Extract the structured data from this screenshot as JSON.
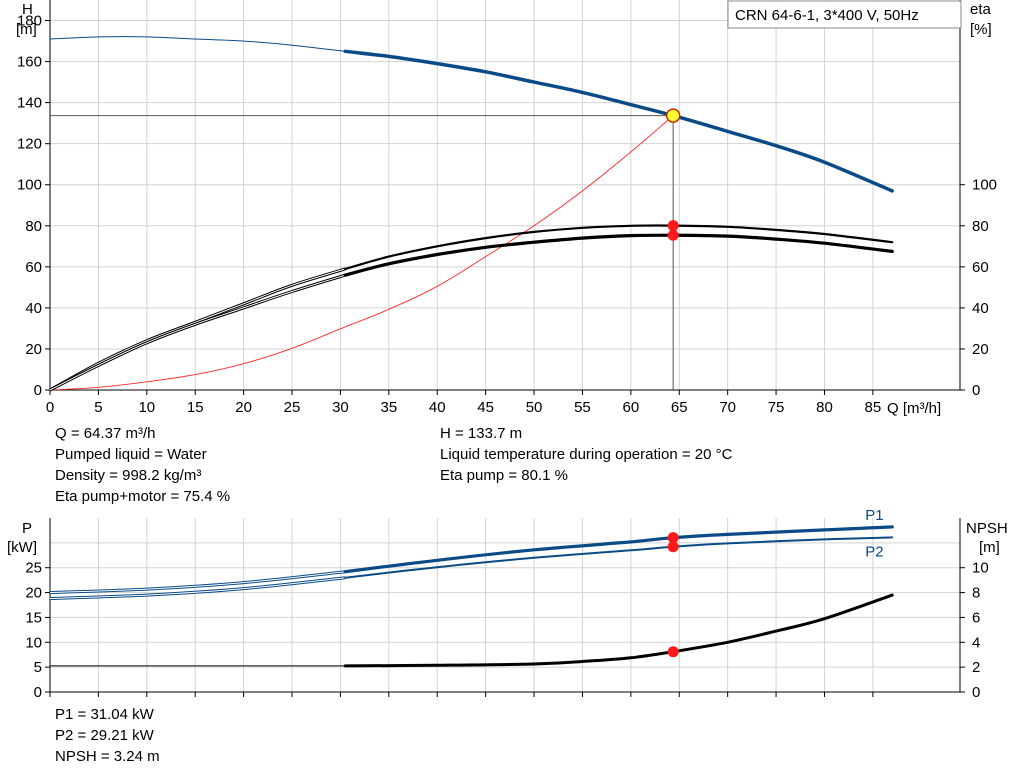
{
  "title_box": "CRN 64-6-1, 3*400 V, 50Hz",
  "colors": {
    "head": "#0a4a86",
    "power": "#0a4a86",
    "eff": "#000000",
    "npsh": "#000000",
    "system": "#ff2a2a",
    "marker": "#ff1a1a",
    "duty_fill": "#ffff33",
    "duty_stroke": "#cc2a00"
  },
  "axes": {
    "h_label": "H",
    "h_unit": "[m]",
    "eta_label": "eta",
    "eta_unit": "[%]",
    "q_label": "Q [m³/h]",
    "p_label": "P",
    "p_unit": "[kW]",
    "npsh_label": "NPSH",
    "npsh_unit": "[m]"
  },
  "info_top_left": [
    "Q = 64.37 m³/h",
    "Pumped liquid = Water",
    "Density = 998.2 kg/m³",
    "Eta pump+motor = 75.4 %"
  ],
  "info_top_right": [
    "H = 133.7 m",
    "Liquid temperature during operation = 20 °C",
    "Eta pump = 80.1 %"
  ],
  "info_bottom": [
    "P1 = 31.04 kW",
    "P2 = 29.21 kW",
    "NPSH = 3.24 m"
  ],
  "chart_data": [
    {
      "type": "line",
      "xlabel": "Q [m³/h]",
      "ylabel": "H [m]",
      "y2label": "eta [%]",
      "xlim": [
        0,
        94
      ],
      "ylim": [
        0,
        190
      ],
      "y2lim": [
        0,
        190
      ],
      "xticks": [
        0,
        5,
        10,
        15,
        20,
        25,
        30,
        35,
        40,
        45,
        50,
        55,
        60,
        65,
        70,
        75,
        80,
        85
      ],
      "yticks": [
        0,
        20,
        40,
        60,
        80,
        100,
        120,
        140,
        160,
        180
      ],
      "y2ticks": [
        0,
        20,
        40,
        60,
        80,
        100
      ],
      "grid": true,
      "operating_range_start": 30.5,
      "duty_point": {
        "q": 64.37,
        "h": 133.7,
        "eta_pump": 80.1,
        "eta_total": 75.4
      },
      "series": [
        {
          "key": "head",
          "axis": "left",
          "x": [
            0,
            5,
            10,
            15,
            20,
            25,
            30.5,
            35,
            40,
            45,
            50,
            55,
            60,
            64.37,
            70,
            75,
            80,
            87
          ],
          "y": [
            171,
            172,
            172,
            171,
            170,
            168,
            165,
            162.5,
            159,
            155,
            150,
            145,
            139,
            133.7,
            126,
            119,
            111,
            97
          ]
        },
        {
          "key": "eta_pump",
          "axis": "right",
          "x": [
            0,
            5,
            10,
            15,
            20,
            25,
            30.5,
            35,
            40,
            45,
            50,
            55,
            60,
            64.37,
            70,
            75,
            80,
            87
          ],
          "y": [
            0,
            13,
            24,
            33,
            42,
            51,
            59,
            65,
            70,
            74,
            77,
            79,
            80,
            80.1,
            79.5,
            78,
            76,
            72
          ]
        },
        {
          "key": "eta_total",
          "axis": "right",
          "x": [
            0,
            5,
            10,
            15,
            20,
            25,
            30.5,
            35,
            40,
            45,
            50,
            55,
            60,
            64.37,
            70,
            75,
            80,
            87
          ],
          "y": [
            0,
            12,
            23,
            32,
            40,
            48,
            56,
            61.5,
            66,
            69.5,
            72,
            74,
            75.2,
            75.4,
            75,
            73.5,
            71.5,
            67.5
          ]
        },
        {
          "key": "system",
          "axis": "left",
          "x": [
            0,
            5,
            10,
            15,
            20,
            25,
            30,
            35,
            40,
            45,
            50,
            55,
            60,
            64.37
          ],
          "y": [
            0,
            1.3,
            4,
            7.5,
            12.8,
            20.3,
            29.8,
            39.3,
            50.5,
            65,
            80,
            97,
            116,
            133.7
          ]
        }
      ]
    },
    {
      "type": "line",
      "xlabel": "Q [m³/h]",
      "ylabel": "P [kW]",
      "y2label": "NPSH [m]",
      "xlim": [
        0,
        94
      ],
      "ylim": [
        0,
        35
      ],
      "y2lim": [
        0,
        14
      ],
      "xticks": [
        0,
        5,
        10,
        15,
        20,
        25,
        30,
        35,
        40,
        45,
        50,
        55,
        60,
        65,
        70,
        75,
        80,
        85
      ],
      "yticks": [
        0,
        5,
        10,
        15,
        20,
        25
      ],
      "y2ticks": [
        0,
        2,
        4,
        6,
        8,
        10
      ],
      "grid": true,
      "operating_range_start": 30.5,
      "series": [
        {
          "key": "p1",
          "name": "P1",
          "axis": "left",
          "x": [
            0,
            10,
            20,
            30.5,
            40,
            50,
            60,
            64.37,
            70,
            80,
            87
          ],
          "y": [
            20,
            20.7,
            22,
            24.2,
            26.5,
            28.6,
            30.2,
            31.04,
            31.7,
            32.6,
            33.2
          ]
        },
        {
          "key": "p2",
          "name": "P2",
          "axis": "left",
          "x": [
            0,
            10,
            20,
            30.5,
            40,
            50,
            60,
            64.37,
            70,
            80,
            87
          ],
          "y": [
            18.8,
            19.5,
            20.8,
            23,
            25.1,
            27,
            28.5,
            29.21,
            29.9,
            30.7,
            31.1
          ]
        },
        {
          "key": "npsh",
          "axis": "right",
          "x": [
            0,
            30.5,
            40,
            50,
            55,
            60,
            64.37,
            70,
            75,
            80,
            87
          ],
          "y": [
            2.1,
            2.1,
            2.15,
            2.25,
            2.45,
            2.75,
            3.24,
            4.0,
            4.9,
            5.9,
            7.8
          ]
        }
      ]
    }
  ]
}
